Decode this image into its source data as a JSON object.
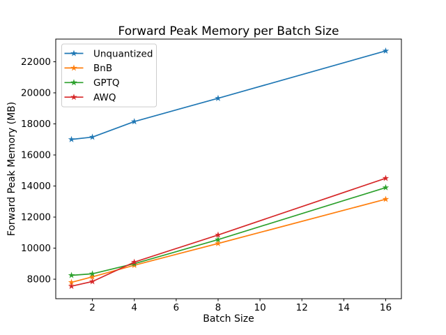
{
  "chart_data": {
    "type": "line",
    "title": "Forward Peak Memory per Batch Size",
    "xlabel": "Batch Size",
    "ylabel": "Forward Peak Memory (MB)",
    "x": [
      1,
      2,
      4,
      8,
      16
    ],
    "series": [
      {
        "name": "Unquantized",
        "color": "#1f77b4",
        "values": [
          17000,
          17150,
          18150,
          19650,
          22700
        ]
      },
      {
        "name": "BnB",
        "color": "#ff7f0e",
        "values": [
          7800,
          8150,
          8900,
          10300,
          13150
        ]
      },
      {
        "name": "GPTQ",
        "color": "#2ca02c",
        "values": [
          8250,
          8350,
          9000,
          10550,
          13900
        ]
      },
      {
        "name": "AWQ",
        "color": "#d62728",
        "values": [
          7550,
          7850,
          9100,
          10850,
          14500
        ]
      }
    ],
    "xticks": [
      2,
      4,
      6,
      8,
      10,
      12,
      14,
      16
    ],
    "yticks": [
      8000,
      10000,
      12000,
      14000,
      16000,
      18000,
      20000,
      22000
    ],
    "xlim": [
      0.25,
      16.75
    ],
    "ylim": [
      6745,
      23460
    ],
    "marker": "star",
    "grid": false,
    "legend_position": "upper left",
    "axis_color": "#000000",
    "background_color": "#ffffff",
    "legend_border_color": "#cccccc"
  }
}
